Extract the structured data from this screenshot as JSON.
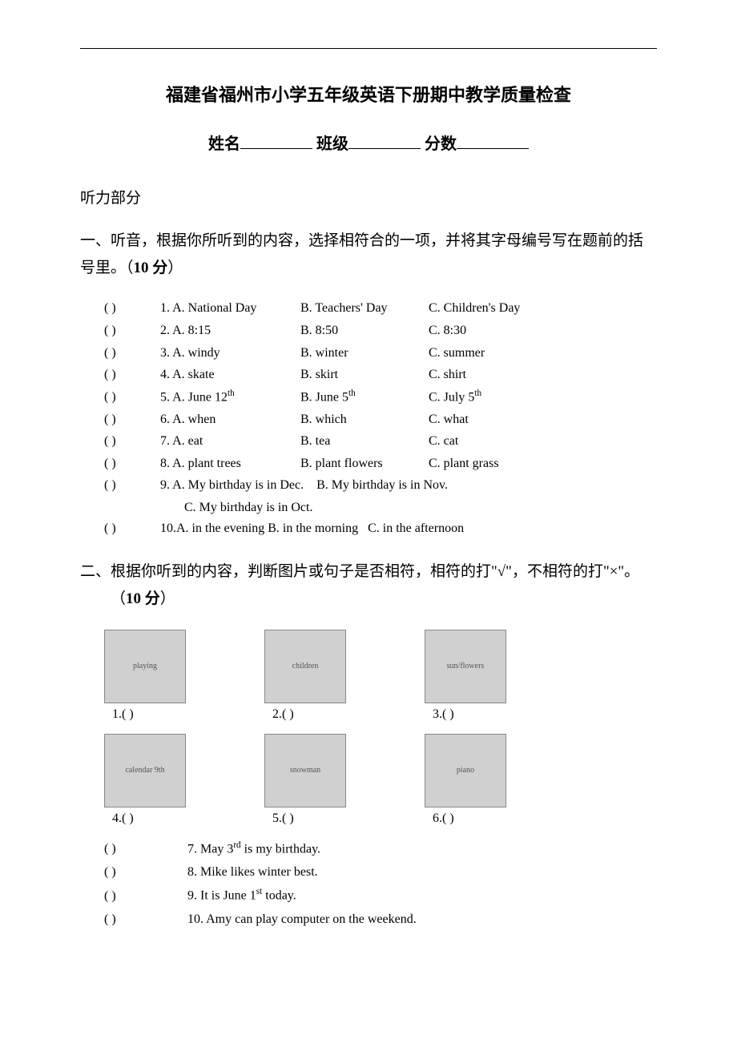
{
  "header": {
    "title": "福建省福州市小学五年级英语下册期中教学质量检查",
    "name_label": "姓名",
    "class_label": "班级",
    "score_label": "分数"
  },
  "listening_section": {
    "header": "听力部分"
  },
  "section1": {
    "title_pre": "一、听音，根据你所听到的内容，选择相符合的一项，并将其字母编号写在题前的括号里。（",
    "points": "10 分",
    "title_post": "）",
    "questions": [
      {
        "num": "1.",
        "a": "A. National Day",
        "b": "B. Teachers' Day",
        "c": "C. Children's Day"
      },
      {
        "num": "2.",
        "a": "A. 8:15",
        "b": "B. 8:50",
        "c": "C. 8:30"
      },
      {
        "num": "3.",
        "a": "A. windy",
        "b": "B. winter",
        "c": "C. summer"
      },
      {
        "num": "4.",
        "a": "A. skate",
        "b": "B. skirt",
        "c": "C. shirt"
      },
      {
        "num": "5.",
        "a": "A. June 12",
        "a_sup": "th",
        "b": "B. June 5",
        "b_sup": "th",
        "c": "C. July 5",
        "c_sup": "th"
      },
      {
        "num": "6.",
        "a": "A. when",
        "b": "B. which",
        "c": "C. what"
      },
      {
        "num": "7.",
        "a": "A. eat",
        "b": "B. tea",
        "c": "C. cat"
      },
      {
        "num": "8.",
        "a": "A. plant trees",
        "b": "B. plant flowers",
        "c": "C. plant grass"
      },
      {
        "num": "9.",
        "a": "A. My birthday is in Dec.",
        "b": "B. My birthday is in Nov.",
        "c": "C. My birthday is in Oct."
      },
      {
        "num": "10.",
        "a": "A. in the evening",
        "b": "B. in the morning",
        "c": "C. in the afternoon"
      }
    ]
  },
  "section2": {
    "title_pre": "二、根据你听到的内容，判断图片或句子是否相符，相符的打\"√\"，不相符的打\"×\"。（",
    "points": "10 分",
    "title_post": "）",
    "images": [
      {
        "label": "1.(          )",
        "desc": "playing"
      },
      {
        "label": "2.(          )",
        "desc": "children"
      },
      {
        "label": "3.(          )",
        "desc": "sun/flowers"
      },
      {
        "label": "4.(          )",
        "desc": "calendar 9th"
      },
      {
        "label": "5.(          )",
        "desc": "snowman"
      },
      {
        "label": "6.(          )",
        "desc": "piano"
      }
    ],
    "tf_questions": [
      {
        "num": "7.",
        "text_pre": "May 3",
        "sup": "rd",
        "text_post": "  is my birthday."
      },
      {
        "num": "8.",
        "text": "Mike likes winter best."
      },
      {
        "num": "9.",
        "text_pre": "It is June 1",
        "sup": "st",
        "text_post": " today."
      },
      {
        "num": "10.",
        "text": "Amy can play computer on the weekend."
      }
    ]
  }
}
